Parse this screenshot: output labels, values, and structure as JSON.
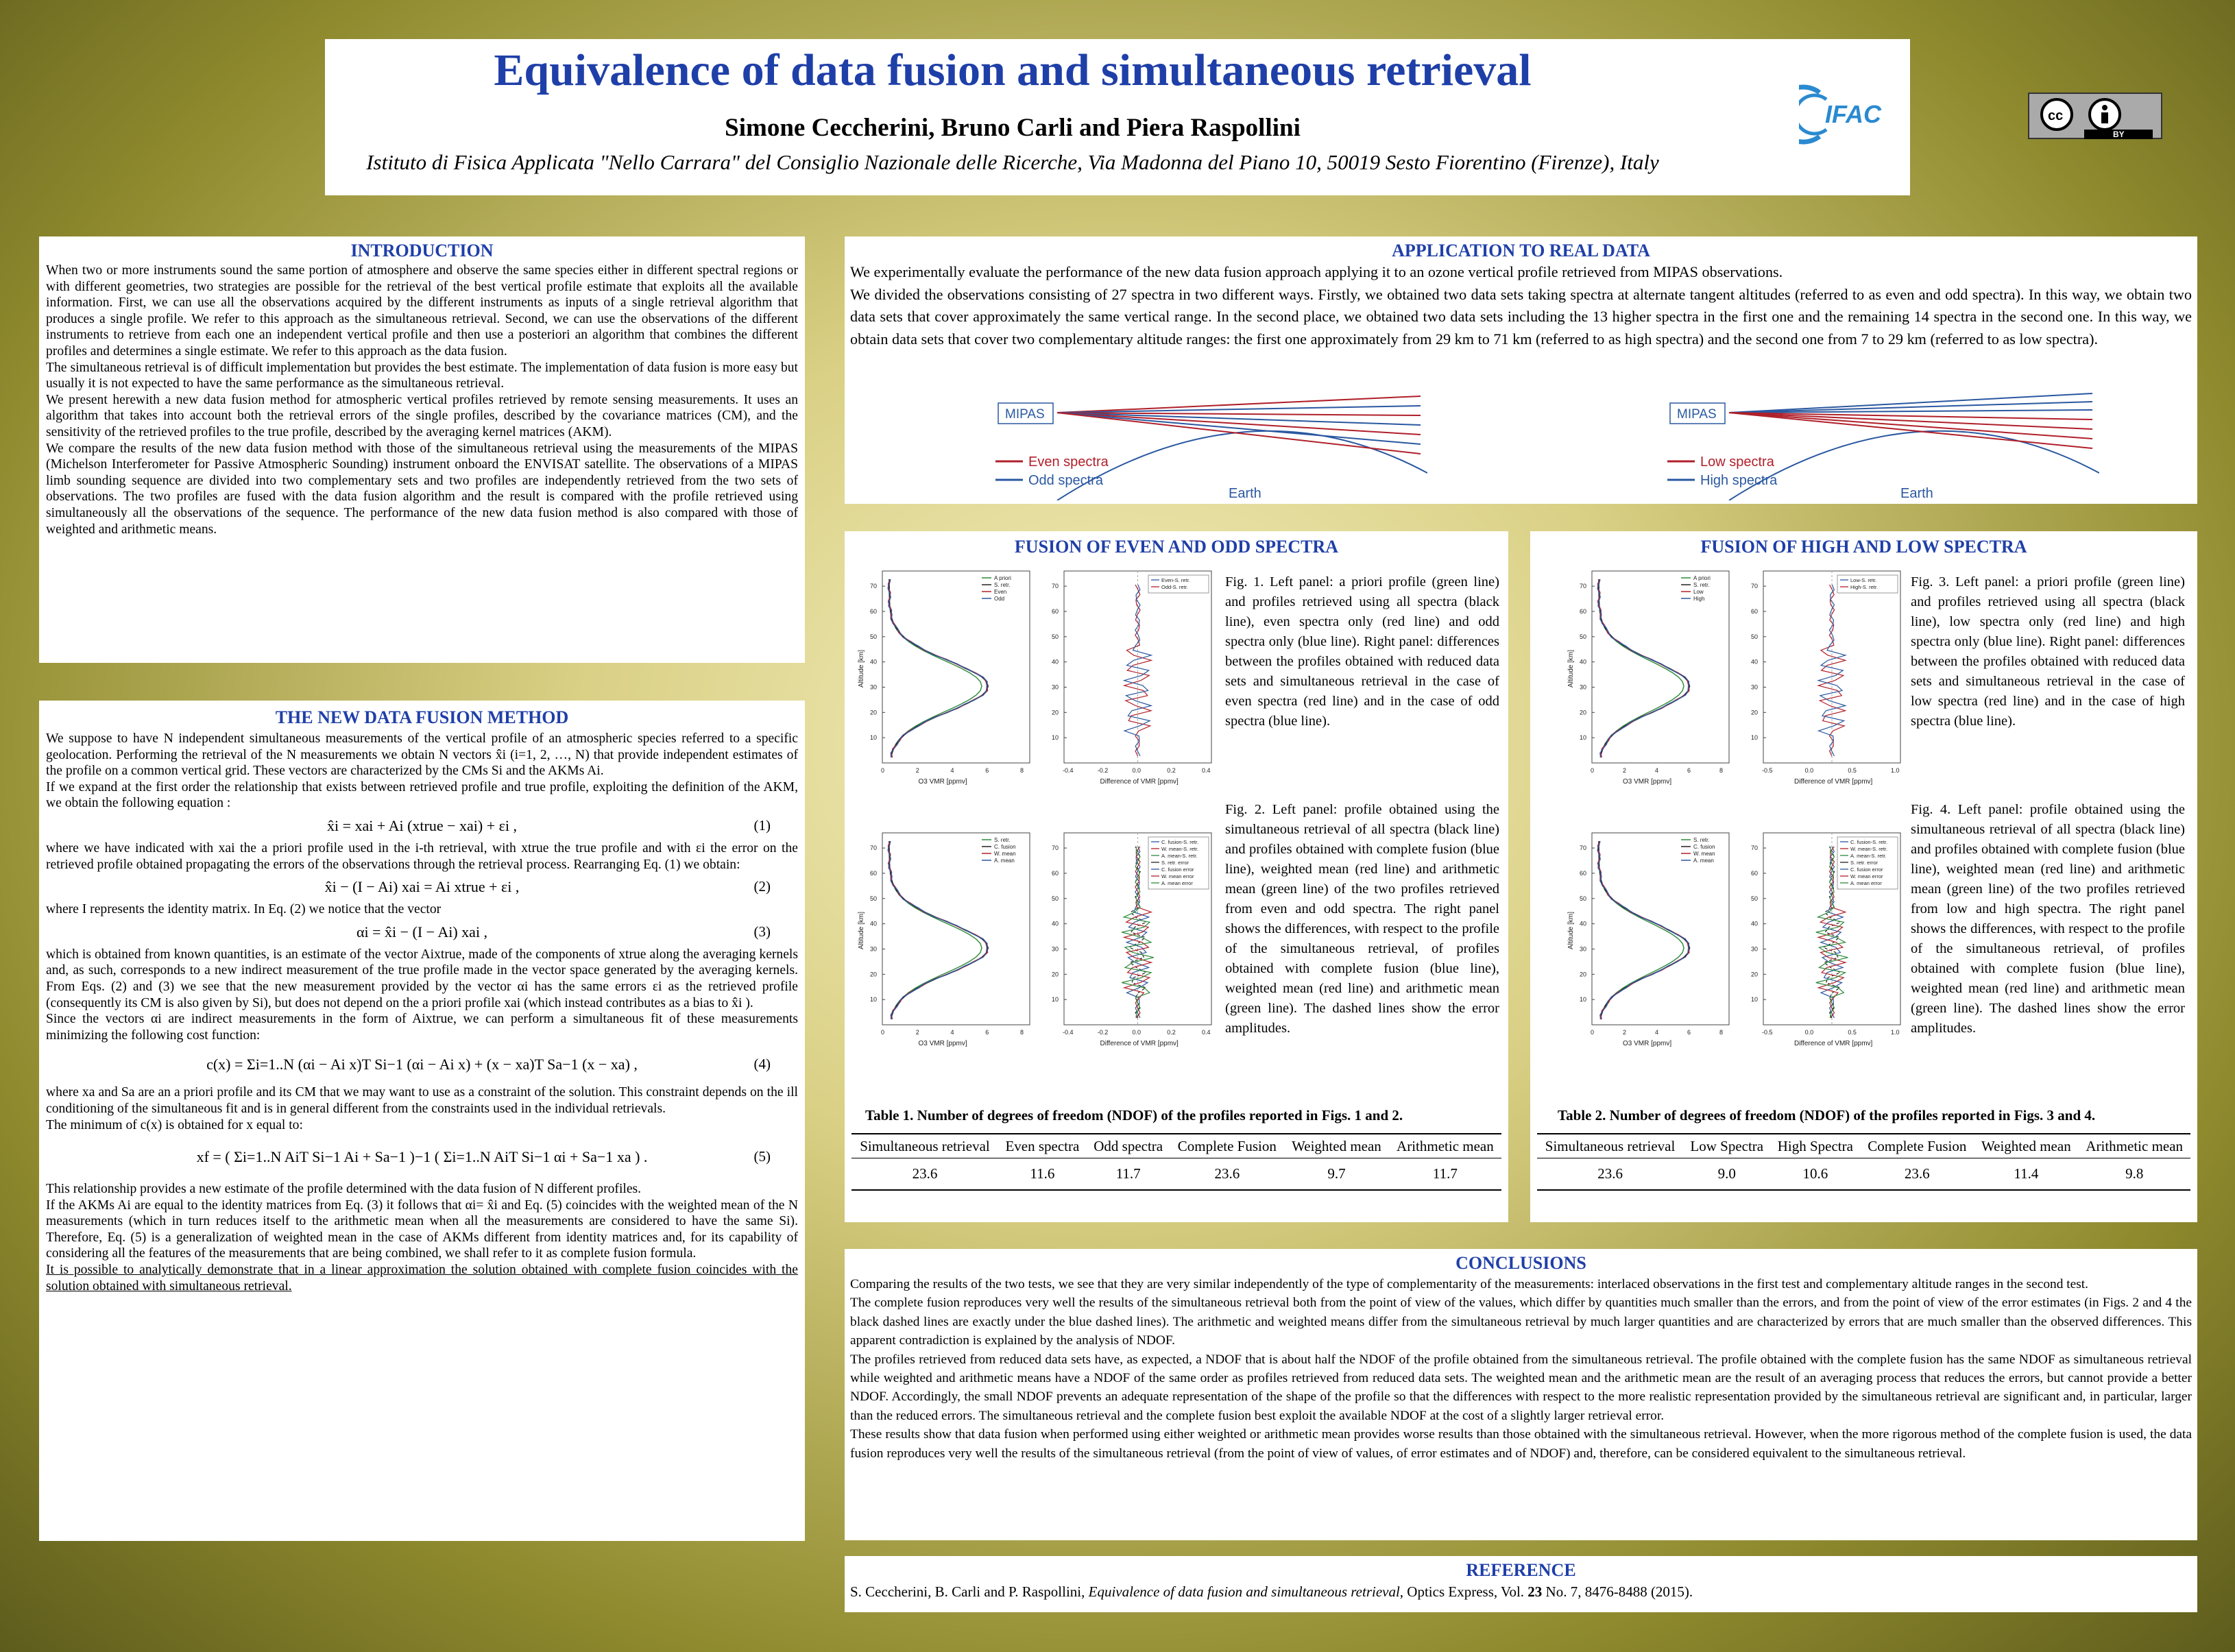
{
  "header": {
    "title": "Equivalence of data fusion and simultaneous retrieval",
    "authors": "Simone Ceccherini, Bruno Carli and Piera Raspollini",
    "affiliation": "Istituto di Fisica Applicata \"Nello Carrara\" del Consiglio Nazionale delle Ricerche, Via Madonna del Piano 10, 50019 Sesto Fiorentino (Firenze), Italy",
    "logo_text": "IFAC",
    "license_badge": "BY"
  },
  "introduction": {
    "title": "INTRODUCTION",
    "paragraphs": [
      "When two or more instruments sound the same portion of atmosphere and observe the same species either in different spectral regions or with different geometries, two strategies are possible for the retrieval of the best vertical profile estimate that exploits all the available information. First, we can use all the observations acquired by the different instruments as inputs of a single retrieval algorithm that produces a single profile. We refer to this approach as the simultaneous retrieval. Second, we can use the observations of the different instruments to retrieve from each one an independent vertical profile and then use a posteriori an algorithm that combines the different profiles and determines a single estimate. We refer to this approach as the data fusion.",
      "The simultaneous retrieval is of difficult implementation but provides the best estimate. The implementation of data fusion is more easy but usually it is not expected to have the same performance as the simultaneous retrieval.",
      "We present herewith a new data fusion method for atmospheric vertical profiles retrieved by remote sensing measurements. It uses an algorithm that takes into account both the retrieval errors of the single profiles, described by the covariance matrices (CM), and the sensitivity of the retrieved profiles to the true profile, described by the averaging kernel matrices (AKM).",
      "We compare the results of the new data fusion method with those of the simultaneous retrieval using the measurements of the MIPAS (Michelson Interferometer for Passive Atmospheric Sounding) instrument onboard the ENVISAT satellite. The observations of a MIPAS limb sounding sequence are divided into two complementary sets and two profiles are independently retrieved from the two sets of observations. The two profiles are fused with the data fusion algorithm and the result is compared with the profile retrieved using simultaneously all the observations of the sequence. The performance of the new data fusion method is also compared with those of weighted and arithmetic means."
    ]
  },
  "method": {
    "title": "THE NEW DATA FUSION METHOD",
    "p1": "We suppose to have N independent simultaneous measurements of the vertical profile of an atmospheric species referred to a specific geolocation. Performing the retrieval of the N measurements we obtain N vectors x̂i (i=1, 2, …, N) that provide independent estimates of the profile on a common vertical grid. These vectors are characterized by the CMs Si and the AKMs Ai.",
    "p2": "If we expand at the first order the relationship that exists between retrieved profile and true profile, exploiting the definition of the AKM, we obtain the following equation :",
    "eq1": "x̂i = xai + Ai (xtrue − xai) + εi ,",
    "eq1_num": "(1)",
    "p3": "where we have indicated with xai the a priori profile used in the i-th retrieval, with xtrue the true profile and with εi the error on the retrieved profile obtained propagating the errors of the observations through the retrieval process. Rearranging Eq. (1) we obtain:",
    "eq2": "x̂i − (I − Ai) xai = Ai xtrue + εi ,",
    "eq2_num": "(2)",
    "p4": "where I represents the identity matrix. In Eq. (2) we notice that the vector",
    "eq3": "αi = x̂i − (I − Ai) xai ,",
    "eq3_num": "(3)",
    "p5": "which is obtained from known quantities, is an estimate of the vector Aixtrue, made of the components of xtrue along the averaging kernels and, as such, corresponds to a new indirect measurement of the true profile made in the vector space generated by the averaging kernels. From Eqs. (2) and (3) we see that the new measurement provided by the vector αi has the same errors εi as the retrieved profile (consequently its CM is also given by Si), but does not depend on the a priori profile xai (which instead contributes as a bias to x̂i ).",
    "p6": "Since the vectors αi are indirect measurements in the form of Aixtrue, we can perform a simultaneous fit of these measurements minimizing the following cost function:",
    "eq4": "c(x) = Σi=1..N (αi − Ai x)T Si−1 (αi − Ai x) + (x − xa)T Sa−1 (x − xa) ,",
    "eq4_num": "(4)",
    "p7": "where xa and Sa are an a priori profile and its CM that we may want to use as a constraint of the solution. This constraint depends on the ill conditioning of the simultaneous fit and is in general different from the constraints used in the individual retrievals.",
    "p8": "The minimum of c(x) is obtained for x equal to:",
    "eq5": "xf = ( Σi=1..N AiT Si−1 Ai + Sa−1 )−1 ( Σi=1..N AiT Si−1 αi + Sa−1 xa ) .",
    "eq5_num": "(5)",
    "p9": "This relationship provides a new estimate of the profile determined with the data fusion of N different profiles.",
    "p10": "If the AKMs Ai are equal to the identity matrices from Eq. (3) it follows that αi= x̂i and Eq. (5) coincides with the weighted mean of the N measurements (which in turn reduces itself to the arithmetic mean when all the measurements are considered to have the same Si). Therefore, Eq. (5) is a generalization of weighted mean in the case of AKMs different from identity matrices and, for its capability of considering all the features of the measurements that are being combined, we shall refer to it as complete fusion formula.",
    "p11": "It is possible to analytically demonstrate that in a linear approximation the solution obtained with complete fusion coincides with the solution obtained with simultaneous retrieval."
  },
  "application": {
    "title": "APPLICATION TO REAL DATA",
    "p1": "We experimentally evaluate the performance of the new data fusion approach applying it to an ozone vertical profile retrieved from MIPAS observations.",
    "p2": "We divided the observations consisting of 27 spectra in two different ways. Firstly, we obtained two data sets taking spectra at alternate tangent altitudes (referred to as even and odd spectra). In this way, we obtain two data sets that cover approximately the same vertical range. In the second place, we obtained two data sets including the 13 higher spectra in the first one and the remaining 14 spectra in the second one. In this way, we obtain data sets that cover two complementary altitude ranges: the first one approximately from 29 km to 71 km (referred to as high spectra) and the second one from 7 to 29 km (referred to as low spectra).",
    "diagram_left": {
      "instrument": "MIPAS",
      "legend_red": "Even spectra",
      "legend_blue": "Odd spectra",
      "earth": "Earth"
    },
    "diagram_right": {
      "instrument": "MIPAS",
      "legend_red": "Low spectra",
      "legend_blue": "High spectra",
      "earth": "Earth"
    }
  },
  "fusion_even_odd": {
    "title": "FUSION OF EVEN AND ODD SPECTRA",
    "fig1_caption": "Fig. 1. Left panel: a priori profile (green line) and profiles retrieved using all spectra (black line), even spectra only (red line) and odd spectra only (blue line). Right panel: differences between the profiles obtained with reduced data sets and simultaneous retrieval in the case of even spectra (red line) and in the case of odd spectra (blue line).",
    "fig2_caption": "Fig. 2. Left panel: profile obtained using the simultaneous retrieval of all spectra (black line) and profiles obtained with complete fusion (blue line), weighted mean (red line) and arithmetic mean (green line) of the two profiles retrieved from even and odd spectra. The right panel shows the differences, with respect to the profile of the simultaneous retrieval, of profiles obtained with complete fusion (blue line), weighted mean (red line) and arithmetic mean (green line). The dashed lines show the error amplitudes.",
    "fig1_left_legend": [
      "A priori",
      "S. retr.",
      "Even",
      "Odd"
    ],
    "fig1_right_legend": [
      "Even-S. retr.",
      "Odd-S. retr."
    ],
    "fig2_left_legend": [
      "S. retr.",
      "C. fusion",
      "W. mean",
      "A. mean"
    ],
    "fig2_right_legend": [
      "C. fusion-S. retr.",
      "W. mean-S. retr.",
      "A. mean-S. retr.",
      "S. retr. error",
      "C. fusion error",
      "W. mean error",
      "A. mean error"
    ],
    "table_title": "Table 1. Number of degrees of freedom (NDOF) of the profiles reported in Figs. 1 and 2.",
    "table_headers": [
      "Simultaneous retrieval",
      "Even spectra",
      "Odd spectra",
      "Complete Fusion",
      "Weighted mean",
      "Arithmetic mean"
    ],
    "table_values": [
      "23.6",
      "11.6",
      "11.7",
      "23.6",
      "9.7",
      "11.7"
    ],
    "axis": {
      "ylabel": "Altitude [km]",
      "xlabel_left": "O3 VMR [ppmv]",
      "xlabel_right": "Difference of VMR [ppmv]",
      "yticks": [
        "10",
        "20",
        "30",
        "40",
        "50",
        "60",
        "70"
      ],
      "xticks_left": [
        "0",
        "2",
        "4",
        "6",
        "8"
      ],
      "xticks_right": [
        "-0.4",
        "-0.2",
        "0.0",
        "0.2",
        "0.4"
      ]
    }
  },
  "fusion_high_low": {
    "title": "FUSION OF HIGH AND LOW SPECTRA",
    "fig3_caption": "Fig. 3. Left panel: a priori profile (green line) and profiles retrieved using all spectra (black line), low spectra only (red line) and high spectra only (blue line). Right panel: differences between the profiles obtained with reduced data sets and simultaneous retrieval in the case of low spectra (red line) and in the case of high spectra (blue line).",
    "fig4_caption": "Fig. 4. Left panel: profile obtained using the simultaneous retrieval of all spectra (black line) and profiles obtained with complete fusion (blue line), weighted mean (red line) and arithmetic mean (green line) of the two profiles retrieved from low and high spectra. The right panel shows the differences, with respect to the profile of the simultaneous retrieval, of profiles obtained with complete fusion (blue line), weighted mean (red line) and arithmetic mean (green line). The dashed lines show the error amplitudes.",
    "fig3_left_legend": [
      "A priori",
      "S. retr.",
      "Low",
      "High"
    ],
    "fig3_right_legend": [
      "Low-S. retr.",
      "High-S. retr."
    ],
    "fig4_left_legend": [
      "S. retr.",
      "C. fusion",
      "W. mean",
      "A. mean"
    ],
    "fig4_right_legend": [
      "C. fusion-S. retr.",
      "W. mean-S. retr.",
      "A. mean-S. retr.",
      "S. retr. error",
      "C. fusion error",
      "W. mean error",
      "A. mean error"
    ],
    "table_title": "Table 2. Number of degrees of freedom (NDOF) of the profiles reported in Figs. 3 and 4.",
    "table_headers": [
      "Simultaneous retrieval",
      "Low Spectra",
      "High Spectra",
      "Complete Fusion",
      "Weighted mean",
      "Arithmetic mean"
    ],
    "table_values": [
      "23.6",
      "9.0",
      "10.6",
      "23.6",
      "11.4",
      "9.8"
    ],
    "axis": {
      "ylabel": "Altitude [km]",
      "xlabel_left": "O3 VMR [ppmv]",
      "xlabel_right": "Difference of VMR [ppmv]",
      "yticks": [
        "10",
        "20",
        "30",
        "40",
        "50",
        "60",
        "70"
      ],
      "xticks_left": [
        "0",
        "2",
        "4",
        "6",
        "8"
      ],
      "xticks_right": [
        "-0.5",
        "0.0",
        "0.5",
        "1.0"
      ]
    }
  },
  "conclusions": {
    "title": "CONCLUSIONS",
    "paragraphs": [
      "Comparing the results of the two tests, we see that they are very similar independently of the type of complementarity of the measurements: interlaced observations in the first test and complementary altitude ranges in the second test.",
      "The complete fusion reproduces very well the results of the simultaneous retrieval both from the point of view of the values, which differ by quantities much smaller than the errors, and from the point of view of the error estimates (in Figs. 2 and 4 the black dashed lines are exactly under the blue dashed lines). The arithmetic and weighted means differ from the simultaneous retrieval by much larger quantities and are characterized by errors that are much smaller than the observed differences. This apparent contradiction is explained by the analysis of NDOF.",
      "The profiles retrieved from reduced data sets have, as expected, a NDOF that is about half the NDOF of the profile obtained from the simultaneous retrieval. The profile obtained with the complete fusion has the same NDOF as simultaneous retrieval while weighted and arithmetic means have a NDOF of the same order as profiles retrieved from reduced data sets. The weighted mean and the arithmetic mean are the result of an averaging process that reduces the errors, but cannot provide a better NDOF. Accordingly, the small NDOF prevents an adequate representation of the shape of the profile so that the differences with respect to the more realistic representation provided by the simultaneous retrieval are significant and, in particular, larger than the reduced errors. The simultaneous retrieval and the complete fusion best exploit the available NDOF at the cost of a slightly larger retrieval error.",
      "These results show that data fusion when performed using either weighted or arithmetic mean provides worse results than those obtained with the simultaneous retrieval. However, when the more rigorous method of the complete fusion is used, the data fusion reproduces very well the results of the simultaneous retrieval (from the point of view of values, of error estimates and of NDOF) and, therefore, can be considered equivalent to the simultaneous retrieval."
    ]
  },
  "reference": {
    "title": "REFERENCE",
    "authors": "S. Ceccherini, B. Carli and P. Raspollini, ",
    "paper": "Equivalence of data fusion and simultaneous retrieval",
    "journal": ", Optics Express, Vol. ",
    "volume": "23",
    "issue": " No. 7, 8476-8488 (2015)."
  },
  "colors": {
    "title_blue": "#1f3fa8",
    "red_line": "#b0202a",
    "blue_line": "#2a58a0",
    "green_line": "#2e8b3a"
  }
}
